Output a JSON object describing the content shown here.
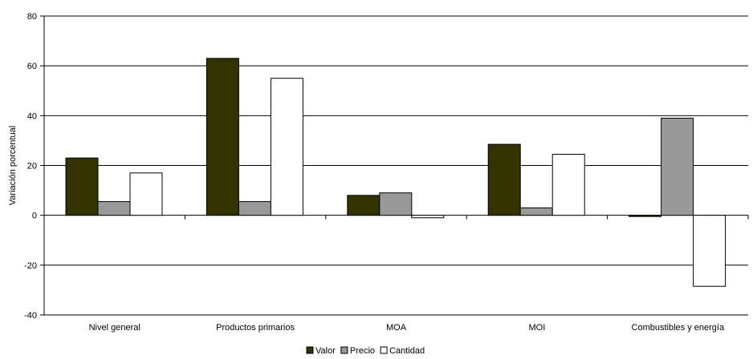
{
  "chart_data": {
    "type": "bar",
    "title": "",
    "xlabel": "",
    "ylabel": "Variación porcentual",
    "ylim": [
      -40,
      80
    ],
    "yticks": [
      -40,
      -20,
      0,
      20,
      40,
      60,
      80
    ],
    "grid": true,
    "legend_position": "bottom",
    "categories": [
      "Nivel general",
      "Productos primarios",
      "MOA",
      "MOI",
      "Combustibles y energía"
    ],
    "series": [
      {
        "name": "Valor",
        "color": "#333300",
        "values": [
          23,
          63,
          8,
          28.5,
          -0.5
        ]
      },
      {
        "name": "Precio",
        "color": "#999999",
        "values": [
          5.5,
          5.5,
          9,
          3,
          39
        ]
      },
      {
        "name": "Cantidad",
        "color": "#ffffff",
        "values": [
          17,
          55,
          -1,
          24.5,
          -28.5
        ]
      }
    ]
  }
}
